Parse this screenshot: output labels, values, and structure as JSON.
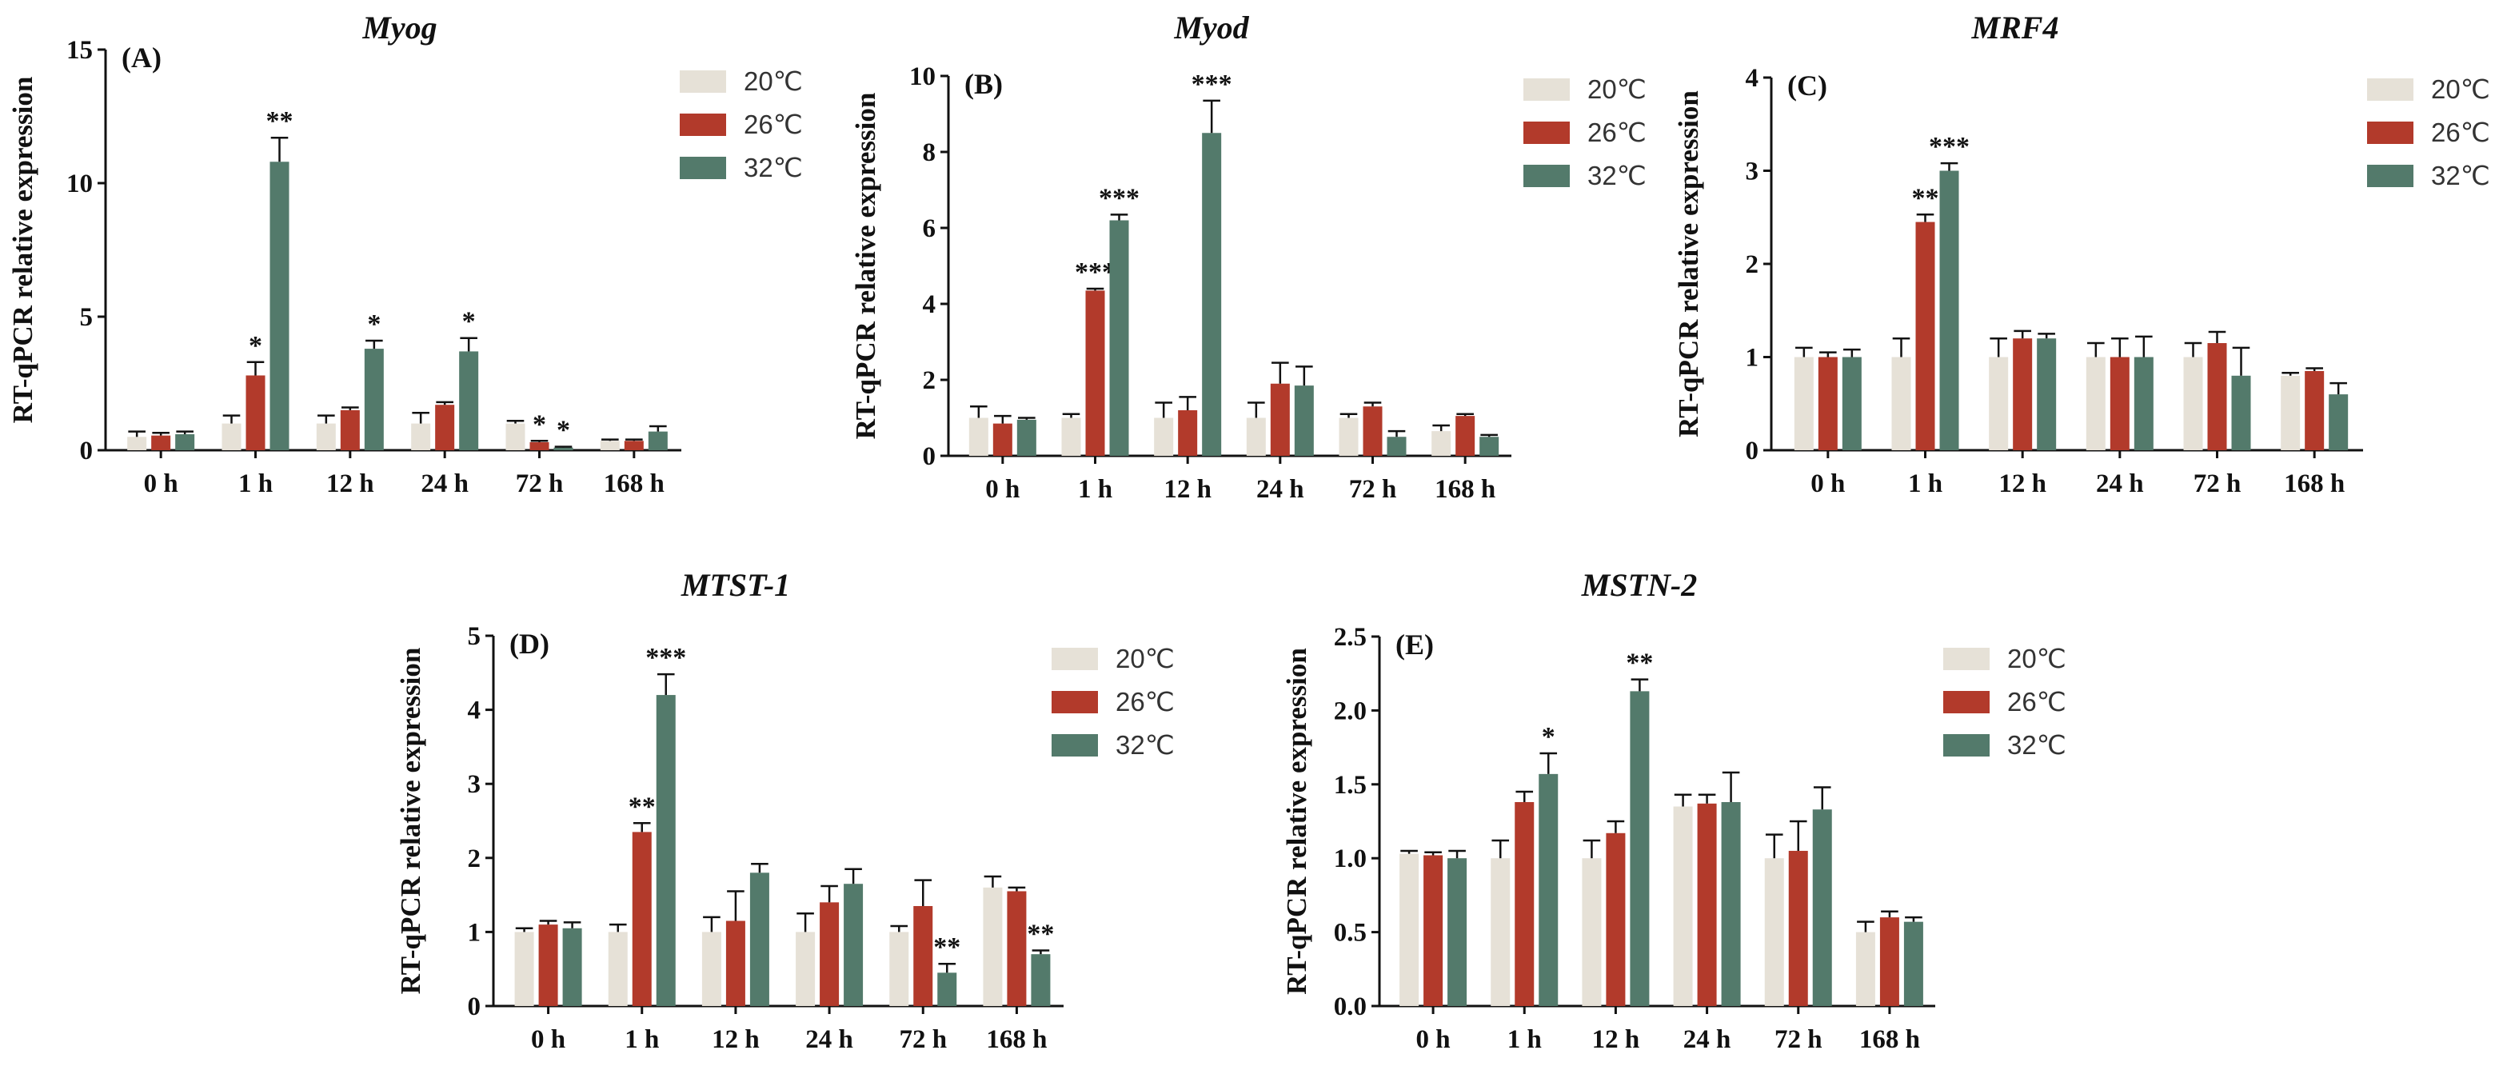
{
  "series_names": [
    "20℃",
    "26℃",
    "32℃"
  ],
  "series_colors": [
    "#e6e1d7",
    "#b23a2b",
    "#537a6b"
  ],
  "chart_data": [
    {
      "id": "A",
      "type": "bar",
      "title": "Myog",
      "panel_label": "(A)",
      "ylabel": "RT-qPCR relative expression",
      "ylim": [
        0,
        15
      ],
      "yticks": [
        0,
        5,
        10,
        15
      ],
      "categories": [
        "0 h",
        "1 h",
        "12 h",
        "24 h",
        "72 h",
        "168 h"
      ],
      "series": [
        {
          "name": "20℃",
          "values": [
            0.5,
            1.0,
            1.0,
            1.0,
            1.0,
            0.35
          ],
          "errors": [
            0.2,
            0.3,
            0.3,
            0.4,
            0.1,
            0.05
          ],
          "sig": [
            "",
            "",
            "",
            "",
            "",
            ""
          ]
        },
        {
          "name": "26℃",
          "values": [
            0.55,
            2.8,
            1.5,
            1.7,
            0.3,
            0.35
          ],
          "errors": [
            0.1,
            0.5,
            0.1,
            0.1,
            0.05,
            0.05
          ],
          "sig": [
            "",
            "*",
            "",
            "",
            "*",
            ""
          ]
        },
        {
          "name": "32℃",
          "values": [
            0.6,
            10.8,
            3.8,
            3.7,
            0.1,
            0.7
          ],
          "errors": [
            0.1,
            0.9,
            0.3,
            0.5,
            0.03,
            0.2
          ],
          "sig": [
            "",
            "**",
            "*",
            "*",
            "*",
            ""
          ]
        }
      ]
    },
    {
      "id": "B",
      "type": "bar",
      "title": "Myod",
      "panel_label": "(B)",
      "ylabel": "RT-qPCR relative expression",
      "ylim": [
        0,
        10
      ],
      "yticks": [
        0,
        2,
        4,
        6,
        8,
        10
      ],
      "categories": [
        "0 h",
        "1 h",
        "12 h",
        "24 h",
        "72 h",
        "168 h"
      ],
      "series": [
        {
          "name": "20℃",
          "values": [
            1.0,
            1.0,
            1.0,
            1.0,
            1.0,
            0.65
          ],
          "errors": [
            0.3,
            0.1,
            0.4,
            0.4,
            0.1,
            0.15
          ],
          "sig": [
            "",
            "",
            "",
            "",
            "",
            ""
          ]
        },
        {
          "name": "26℃",
          "values": [
            0.85,
            4.35,
            1.2,
            1.9,
            1.3,
            1.05
          ],
          "errors": [
            0.2,
            0.05,
            0.35,
            0.55,
            0.1,
            0.05
          ],
          "sig": [
            "",
            "***",
            "",
            "",
            "",
            ""
          ]
        },
        {
          "name": "32℃",
          "values": [
            0.95,
            6.2,
            8.5,
            1.85,
            0.5,
            0.5
          ],
          "errors": [
            0.05,
            0.15,
            0.85,
            0.5,
            0.15,
            0.05
          ],
          "sig": [
            "",
            "***",
            "***",
            "",
            "",
            ""
          ]
        }
      ]
    },
    {
      "id": "C",
      "type": "bar",
      "title": "MRF4",
      "panel_label": "(C)",
      "ylabel": "RT-qPCR relative expression",
      "ylim": [
        0,
        4
      ],
      "yticks": [
        0,
        1,
        2,
        3,
        4
      ],
      "categories": [
        "0 h",
        "1 h",
        "12 h",
        "24 h",
        "72 h",
        "168 h"
      ],
      "series": [
        {
          "name": "20℃",
          "values": [
            1.0,
            1.0,
            1.0,
            1.0,
            1.0,
            0.8
          ],
          "errors": [
            0.1,
            0.2,
            0.2,
            0.15,
            0.15,
            0.03
          ],
          "sig": [
            "",
            "",
            "",
            "",
            "",
            ""
          ]
        },
        {
          "name": "26℃",
          "values": [
            1.0,
            2.45,
            1.2,
            1.0,
            1.15,
            0.85
          ],
          "errors": [
            0.05,
            0.08,
            0.08,
            0.2,
            0.12,
            0.03
          ],
          "sig": [
            "",
            "**",
            "",
            "",
            "",
            ""
          ]
        },
        {
          "name": "32℃",
          "values": [
            1.0,
            3.0,
            1.2,
            1.0,
            0.8,
            0.6
          ],
          "errors": [
            0.08,
            0.08,
            0.05,
            0.22,
            0.3,
            0.12
          ],
          "sig": [
            "",
            "***",
            "",
            "",
            "",
            ""
          ]
        }
      ]
    },
    {
      "id": "D",
      "type": "bar",
      "title": "MTST-1",
      "panel_label": "(D)",
      "ylabel": "RT-qPCR relative expression",
      "ylim": [
        0,
        5
      ],
      "yticks": [
        0,
        1,
        2,
        3,
        4,
        5
      ],
      "categories": [
        "0 h",
        "1 h",
        "12 h",
        "24 h",
        "72 h",
        "168 h"
      ],
      "series": [
        {
          "name": "20℃",
          "values": [
            1.0,
            1.0,
            1.0,
            1.0,
            1.0,
            1.6
          ],
          "errors": [
            0.05,
            0.1,
            0.2,
            0.25,
            0.08,
            0.15
          ],
          "sig": [
            "",
            "",
            "",
            "",
            "",
            ""
          ]
        },
        {
          "name": "26℃",
          "values": [
            1.1,
            2.35,
            1.15,
            1.4,
            1.35,
            1.55
          ],
          "errors": [
            0.05,
            0.12,
            0.4,
            0.22,
            0.35,
            0.05
          ],
          "sig": [
            "",
            "**",
            "",
            "",
            "",
            ""
          ]
        },
        {
          "name": "32℃",
          "values": [
            1.05,
            4.2,
            1.8,
            1.65,
            0.45,
            0.7
          ],
          "errors": [
            0.08,
            0.28,
            0.12,
            0.2,
            0.12,
            0.05
          ],
          "sig": [
            "",
            "***",
            "",
            "",
            "**",
            "**"
          ]
        }
      ]
    },
    {
      "id": "E",
      "type": "bar",
      "title": "MSTN-2",
      "panel_label": "(E)",
      "ylabel": "RT-qPCR relative expression",
      "ylim": [
        0,
        2.5
      ],
      "yticks": [
        "0.0",
        "0.5",
        "1.0",
        "1.5",
        "2.0",
        "2.5"
      ],
      "categories": [
        "0 h",
        "1 h",
        "12 h",
        "24 h",
        "72 h",
        "168 h"
      ],
      "series": [
        {
          "name": "20℃",
          "values": [
            1.03,
            1.0,
            1.0,
            1.35,
            1.0,
            0.5
          ],
          "errors": [
            0.02,
            0.12,
            0.12,
            0.08,
            0.16,
            0.07
          ],
          "sig": [
            "",
            "",
            "",
            "",
            "",
            ""
          ]
        },
        {
          "name": "26℃",
          "values": [
            1.02,
            1.38,
            1.17,
            1.37,
            1.05,
            0.6
          ],
          "errors": [
            0.02,
            0.07,
            0.08,
            0.06,
            0.2,
            0.04
          ],
          "sig": [
            "",
            "",
            "",
            "",
            "",
            ""
          ]
        },
        {
          "name": "32℃",
          "values": [
            1.0,
            1.57,
            2.13,
            1.38,
            1.33,
            0.57
          ],
          "errors": [
            0.05,
            0.14,
            0.08,
            0.2,
            0.15,
            0.03
          ],
          "sig": [
            "",
            "*",
            "**",
            "",
            "",
            ""
          ]
        }
      ]
    }
  ]
}
